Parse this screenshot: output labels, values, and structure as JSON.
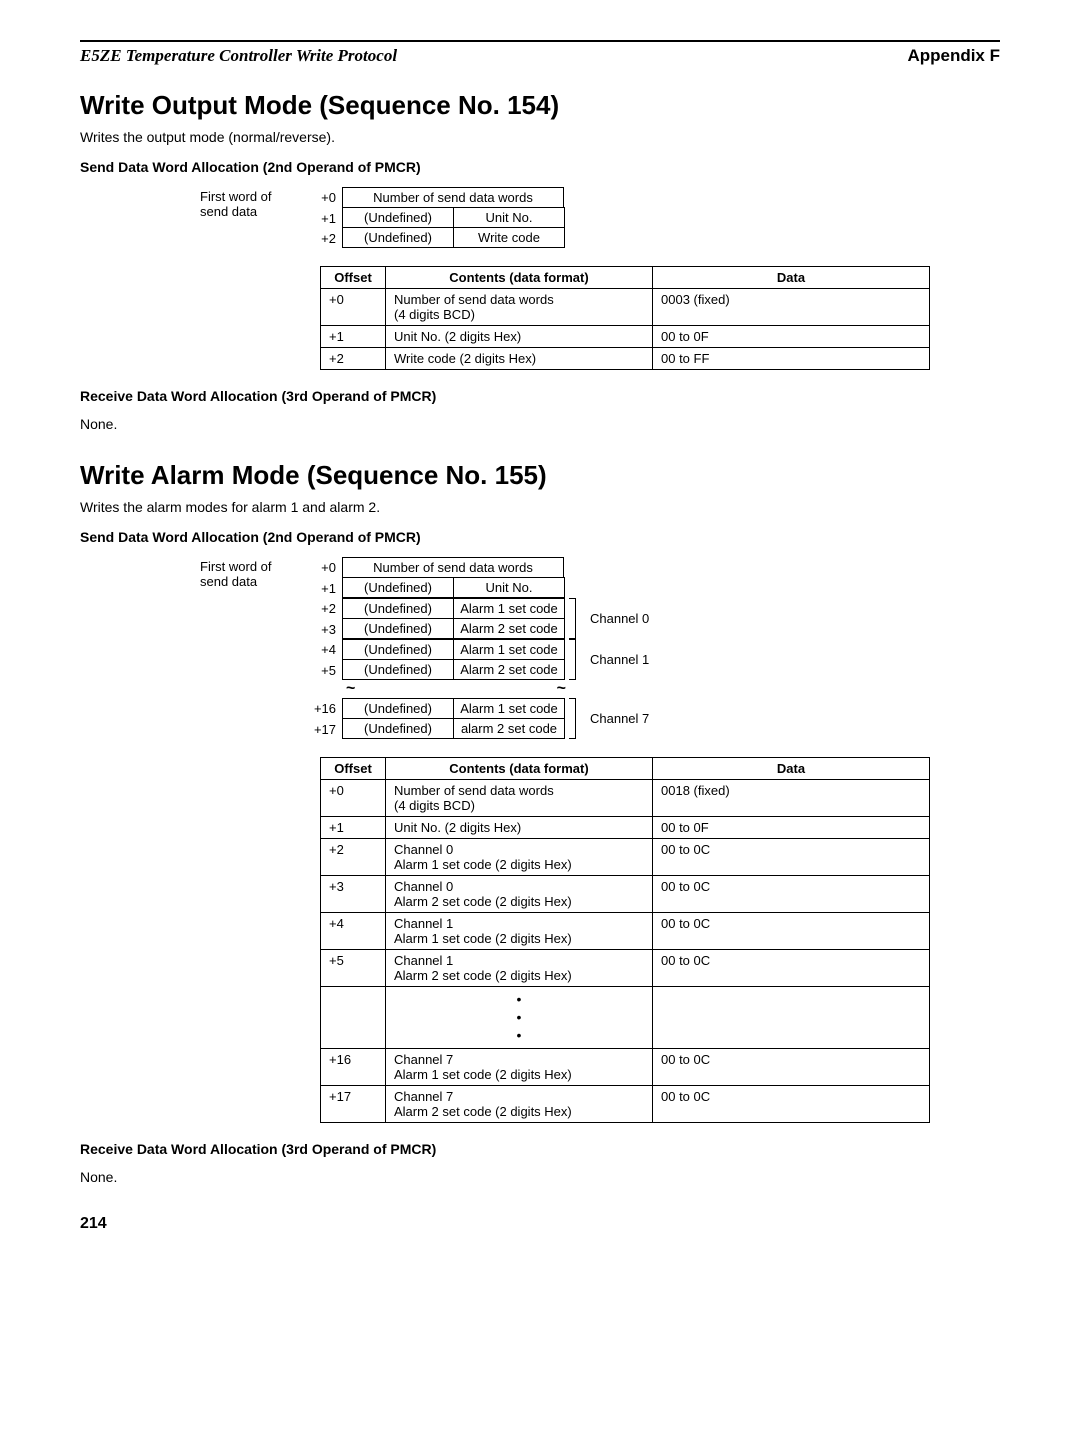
{
  "header": {
    "left": "E5ZE Temperature Controller Write Protocol",
    "right": "Appendix F"
  },
  "section1": {
    "title": "Write Output Mode (Sequence No. 154)",
    "desc": "Writes the output mode (normal/reverse).",
    "send_head": "Send Data Word Allocation (2nd Operand of PMCR)",
    "layout": {
      "leftlabel_l1": "First word of",
      "leftlabel_l2": "send data",
      "r0_off": "+0",
      "r0_c": "Number of send data words",
      "r1_off": "+1",
      "r1_a": "(Undefined)",
      "r1_b": "Unit No.",
      "r2_off": "+2",
      "r2_a": "(Undefined)",
      "r2_b": "Write code"
    },
    "table": {
      "h_offset": "Offset",
      "h_contents": "Contents (data format)",
      "h_data": "Data",
      "rows": [
        {
          "offset": "+0",
          "contents": "Number of send data words\n(4 digits BCD)",
          "data": "0003 (fixed)"
        },
        {
          "offset": "+1",
          "contents": "Unit No. (2 digits Hex)",
          "data": "00 to 0F"
        },
        {
          "offset": "+2",
          "contents": "Write code (2 digits Hex)",
          "data": "00 to FF"
        }
      ]
    },
    "recv_head": "Receive Data Word Allocation (3rd Operand of PMCR)",
    "recv_none": "None."
  },
  "section2": {
    "title": "Write Alarm Mode (Sequence No. 155)",
    "desc": "Writes the alarm modes for alarm 1 and alarm 2.",
    "send_head": "Send Data Word Allocation (2nd Operand of PMCR)",
    "layout": {
      "leftlabel_l1": "First word of",
      "leftlabel_l2": "send data",
      "r0_off": "+0",
      "r0_c": "Number of send data words",
      "r1_off": "+1",
      "r1_a": "(Undefined)",
      "r1_b": "Unit No.",
      "r2_off": "+2",
      "r2_a": "(Undefined)",
      "r2_b": "Alarm 1 set code",
      "r3_off": "+3",
      "r3_a": "(Undefined)",
      "r3_b": "Alarm 2 set code",
      "r4_off": "+4",
      "r4_a": "(Undefined)",
      "r4_b": "Alarm 1 set code",
      "r5_off": "+5",
      "r5_a": "(Undefined)",
      "r5_b": "Alarm 2 set code",
      "r16_off": "+16",
      "r16_a": "(Undefined)",
      "r16_b": "Alarm 1 set code",
      "r17_off": "+17",
      "r17_a": "(Undefined)",
      "r17_b": "alarm 2 set code",
      "ch0": "Channel 0",
      "ch1": "Channel 1",
      "ch7": "Channel 7",
      "tilde": "~"
    },
    "table": {
      "h_offset": "Offset",
      "h_contents": "Contents (data format)",
      "h_data": "Data",
      "rows": [
        {
          "offset": "+0",
          "contents": "Number of send data words\n(4 digits BCD)",
          "data": "0018 (fixed)"
        },
        {
          "offset": "+1",
          "contents": "Unit No. (2 digits Hex)",
          "data": "00 to 0F"
        },
        {
          "offset": "+2",
          "contents": "Channel 0\nAlarm 1 set code (2 digits Hex)",
          "data": "00 to 0C"
        },
        {
          "offset": "+3",
          "contents": "Channel 0\nAlarm 2 set code (2 digits Hex)",
          "data": "00 to 0C"
        },
        {
          "offset": "+4",
          "contents": "Channel 1\nAlarm 1 set code (2 digits Hex)",
          "data": "00 to 0C"
        },
        {
          "offset": "+5",
          "contents": "Channel 1\nAlarm 2 set code (2 digits Hex)",
          "data": "00 to 0C"
        }
      ],
      "dots": "•\n•\n•",
      "rows2": [
        {
          "offset": "+16",
          "contents": "Channel 7\nAlarm 1 set code (2 digits Hex)",
          "data": "00 to 0C"
        },
        {
          "offset": "+17",
          "contents": "Channel 7\nAlarm 2 set code (2 digits Hex)",
          "data": "00 to 0C"
        }
      ]
    },
    "recv_head": "Receive Data Word Allocation (3rd Operand of PMCR)",
    "recv_none": "None."
  },
  "pagenum": "214"
}
